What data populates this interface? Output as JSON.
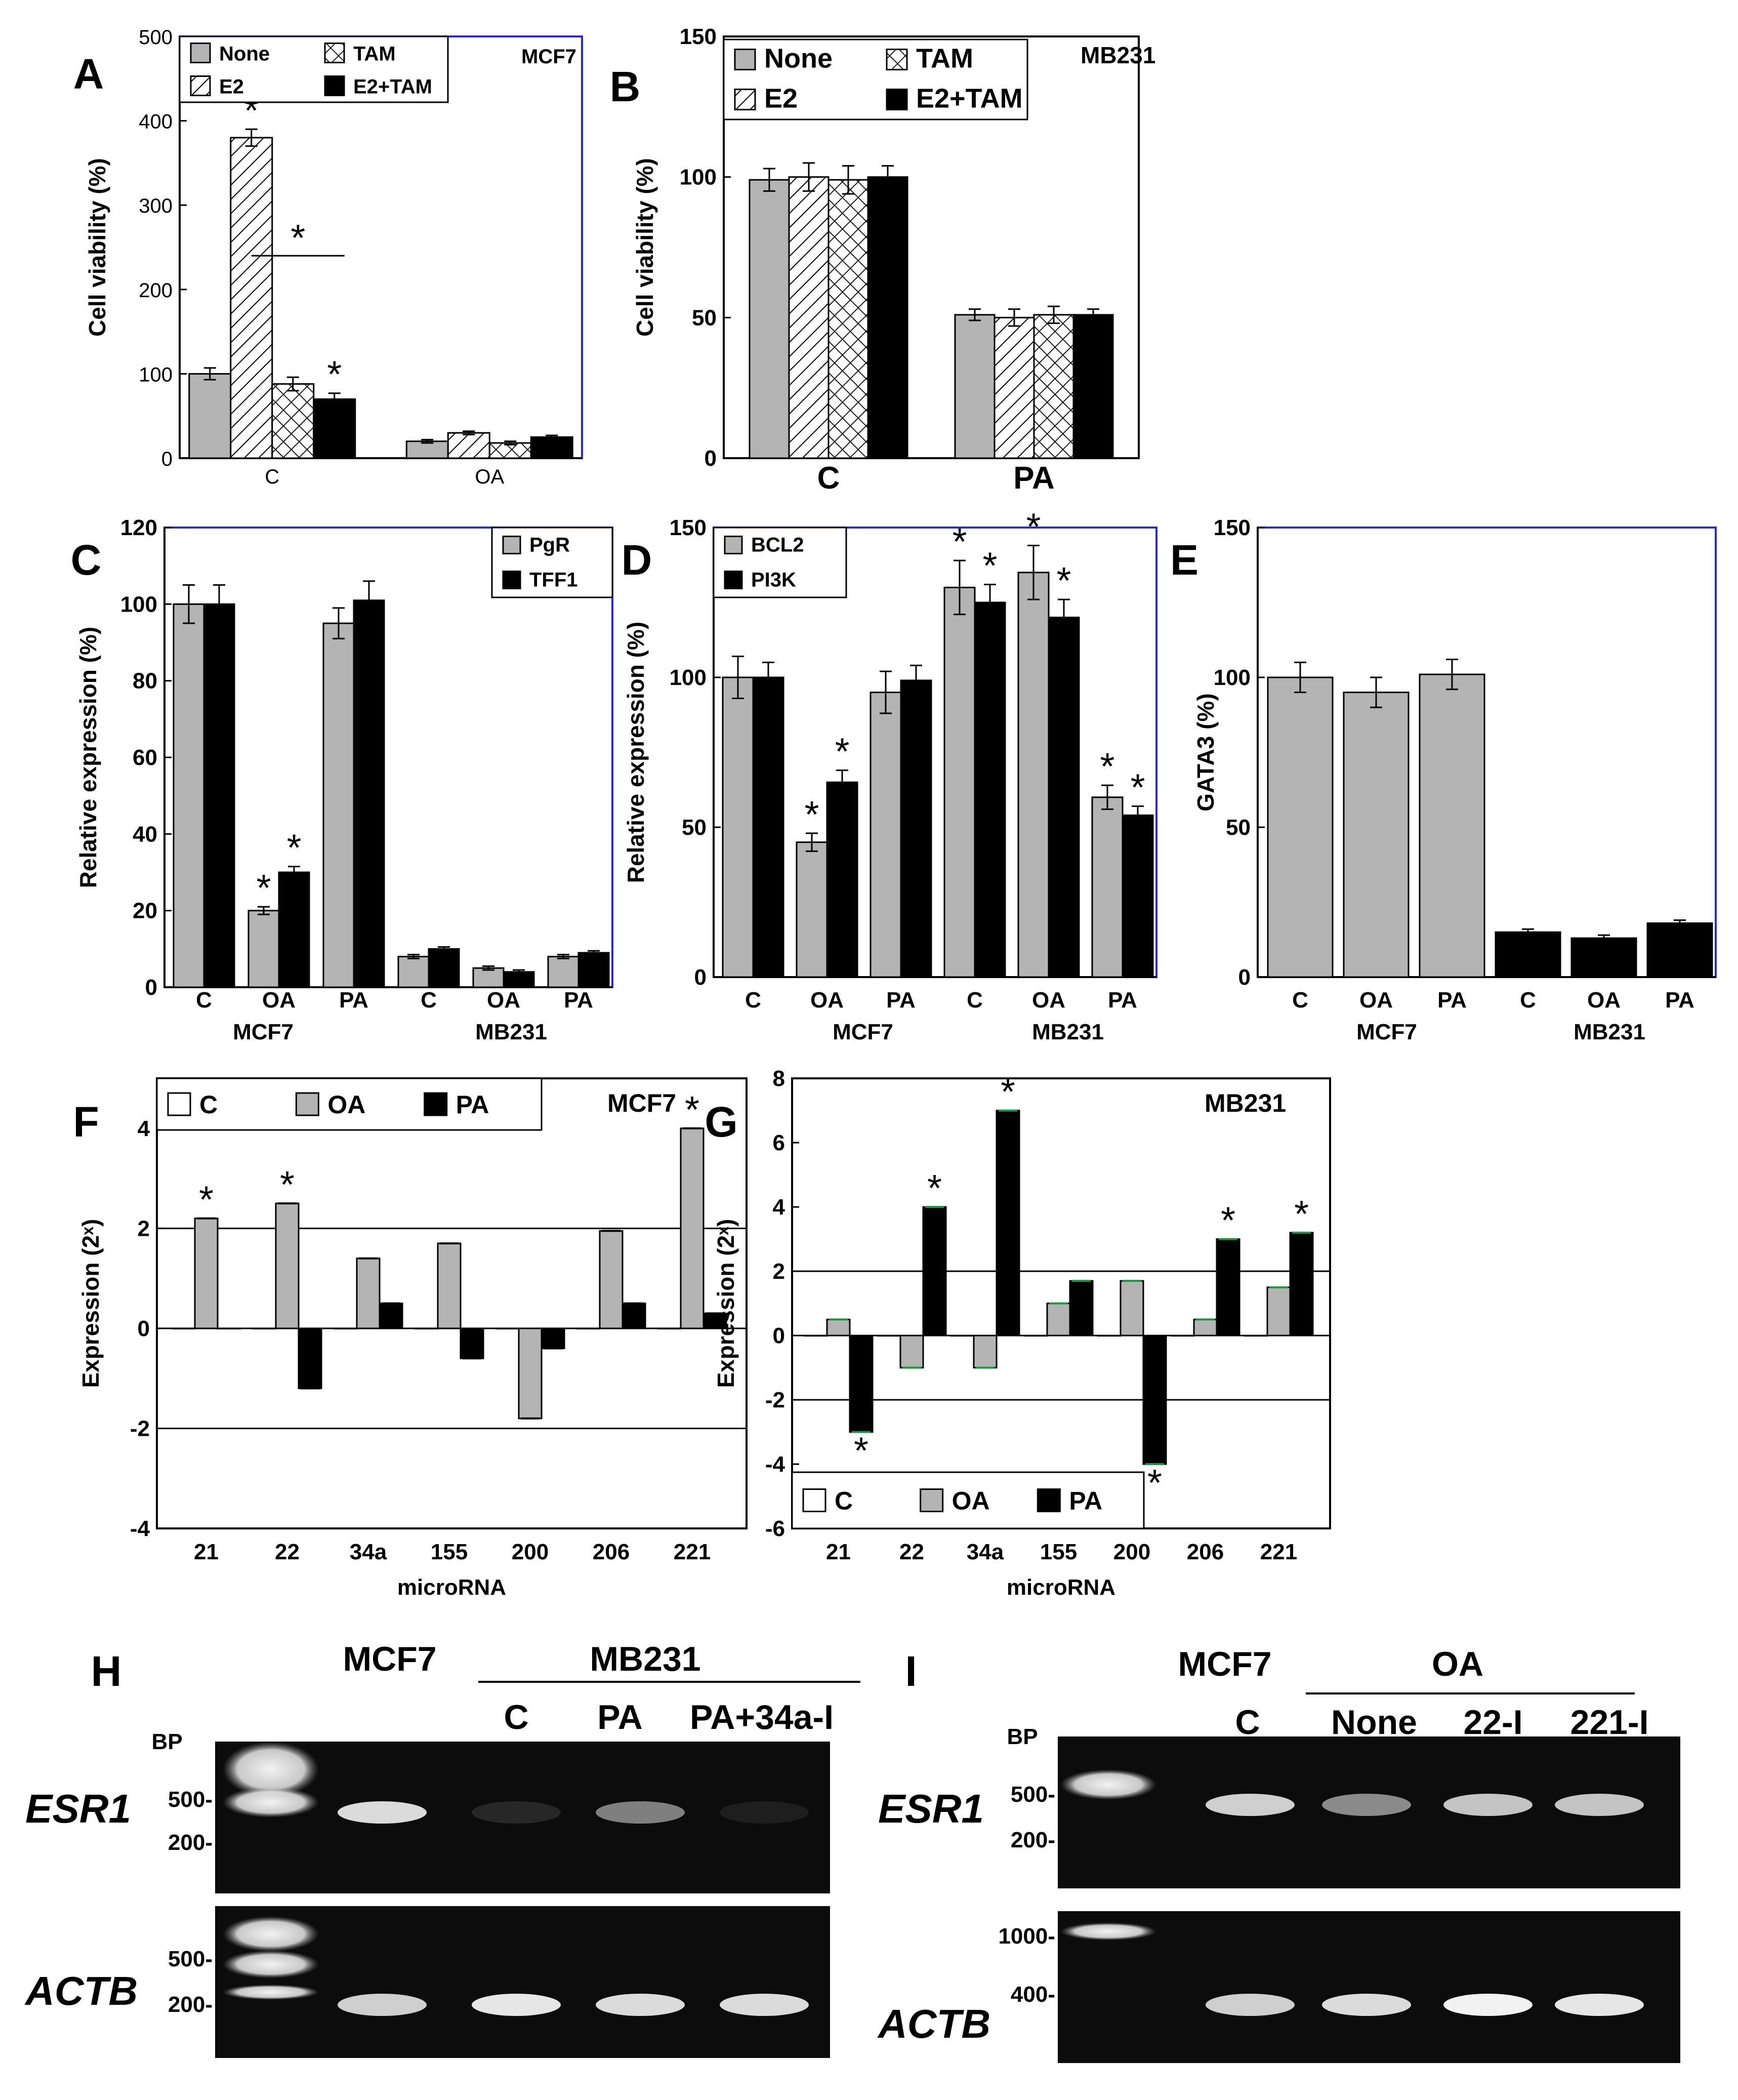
{
  "chart_data": [
    {
      "panel": "A",
      "type": "bar",
      "cell_line": "MCF7",
      "categories": [
        "C",
        "OA"
      ],
      "series": [
        {
          "name": "None",
          "values": [
            100,
            20
          ],
          "err": [
            7,
            2
          ]
        },
        {
          "name": "E2",
          "values": [
            380,
            30
          ],
          "err": [
            10,
            2
          ]
        },
        {
          "name": "TAM",
          "values": [
            88,
            18
          ],
          "err": [
            8,
            2
          ]
        },
        {
          "name": "E2+TAM",
          "values": [
            70,
            25
          ],
          "err": [
            7,
            2
          ]
        }
      ],
      "ylabel": "Cell viability (%)",
      "xlabel": "",
      "ylim": [
        0,
        500
      ],
      "yticks": [
        0,
        100,
        200,
        300,
        400,
        500
      ],
      "significance": [
        {
          "category": 0,
          "series": 1,
          "text": "*"
        },
        {
          "category": 0,
          "series": 3,
          "text": "*"
        }
      ],
      "bracket_star": "*",
      "legend_position": "top-left"
    },
    {
      "panel": "B",
      "type": "bar",
      "cell_line": "MB231",
      "categories": [
        "C",
        "PA"
      ],
      "series": [
        {
          "name": "None",
          "values": [
            99,
            51
          ],
          "err": [
            4,
            2
          ]
        },
        {
          "name": "E2",
          "values": [
            100,
            50
          ],
          "err": [
            5,
            3
          ]
        },
        {
          "name": "TAM",
          "values": [
            99,
            51
          ],
          "err": [
            5,
            3
          ]
        },
        {
          "name": "E2+TAM",
          "values": [
            100,
            51
          ],
          "err": [
            4,
            2
          ]
        }
      ],
      "ylabel": "Cell viability (%)",
      "xlabel": "",
      "ylim": [
        0,
        150
      ],
      "yticks": [
        0,
        50,
        100,
        150
      ],
      "legend_position": "top-left"
    },
    {
      "panel": "C",
      "type": "bar",
      "categories": [
        "C",
        "OA",
        "PA",
        "C",
        "OA",
        "PA"
      ],
      "groups": [
        "MCF7",
        "MB231"
      ],
      "series": [
        {
          "name": "PgR",
          "values": [
            100,
            20,
            95,
            8,
            5,
            8
          ],
          "err": [
            5,
            1,
            4,
            0.5,
            0.5,
            0.5
          ]
        },
        {
          "name": "TFF1",
          "values": [
            100,
            30,
            101,
            10,
            4,
            9
          ],
          "err": [
            5,
            1.5,
            5,
            0.5,
            0.5,
            0.5
          ]
        }
      ],
      "ylabel": "Relative expression (%)",
      "xlabel": "",
      "ylim": [
        0,
        120
      ],
      "yticks": [
        0,
        20,
        40,
        60,
        80,
        100,
        120
      ],
      "significance": [
        {
          "category": 1,
          "series": 0,
          "text": "*"
        },
        {
          "category": 1,
          "series": 1,
          "text": "*"
        }
      ],
      "legend_position": "top-right"
    },
    {
      "panel": "D",
      "type": "bar",
      "categories": [
        "C",
        "OA",
        "PA",
        "C",
        "OA",
        "PA"
      ],
      "groups": [
        "MCF7",
        "MB231"
      ],
      "series": [
        {
          "name": "BCL2",
          "values": [
            100,
            45,
            95,
            130,
            135,
            60
          ],
          "err": [
            7,
            3,
            7,
            9,
            9,
            4
          ]
        },
        {
          "name": "PI3K",
          "values": [
            100,
            65,
            99,
            125,
            120,
            54
          ],
          "err": [
            5,
            4,
            5,
            6,
            6,
            3
          ]
        }
      ],
      "ylabel": "Relative expression (%)",
      "xlabel": "",
      "ylim": [
        0,
        150
      ],
      "yticks": [
        0,
        50,
        100,
        150
      ],
      "significance": [
        {
          "category": 1,
          "series": 0,
          "text": "*"
        },
        {
          "category": 1,
          "series": 1,
          "text": "*"
        },
        {
          "category": 3,
          "series": 0,
          "text": "*"
        },
        {
          "category": 3,
          "series": 1,
          "text": "*"
        },
        {
          "category": 4,
          "series": 0,
          "text": "*"
        },
        {
          "category": 4,
          "series": 1,
          "text": "*"
        },
        {
          "category": 5,
          "series": 0,
          "text": "*"
        },
        {
          "category": 5,
          "series": 1,
          "text": "*"
        }
      ],
      "legend_position": "top-left"
    },
    {
      "panel": "E",
      "type": "bar",
      "categories": [
        "C",
        "OA",
        "PA",
        "C",
        "OA",
        "PA"
      ],
      "groups": [
        "MCF7",
        "MB231"
      ],
      "series": [
        {
          "name": "",
          "values": [
            100,
            95,
            101,
            15,
            13,
            18
          ],
          "err": [
            5,
            5,
            5,
            1,
            1,
            1
          ]
        }
      ],
      "ylabel": "GATA3 (%)",
      "xlabel": "",
      "ylim": [
        0,
        150
      ],
      "yticks": [
        0,
        50,
        100,
        150
      ]
    },
    {
      "panel": "F",
      "type": "bar",
      "cell_line": "MCF7",
      "categories": [
        "21",
        "22",
        "34a",
        "155",
        "200",
        "206",
        "221"
      ],
      "series": [
        {
          "name": "C",
          "values": [
            0,
            0,
            0,
            0,
            0,
            0,
            0
          ]
        },
        {
          "name": "OA",
          "values": [
            2.2,
            2.5,
            1.4,
            1.7,
            -1.8,
            1.95,
            4.0
          ]
        },
        {
          "name": "PA",
          "values": [
            0,
            -1.2,
            0.5,
            -0.6,
            -0.4,
            0.5,
            0.3
          ]
        }
      ],
      "ylabel": "Expression (2ˣ)",
      "xlabel": "microRNA",
      "ylim": [
        -4,
        5
      ],
      "yticks": [
        -4,
        -2,
        0,
        2,
        4
      ],
      "reference_lines": [
        2,
        -2
      ],
      "significance": [
        {
          "category": 0,
          "series": 1,
          "text": "*"
        },
        {
          "category": 1,
          "series": 1,
          "text": "*"
        },
        {
          "category": 6,
          "series": 1,
          "text": "*"
        }
      ],
      "legend_position": "top"
    },
    {
      "panel": "G",
      "type": "bar",
      "cell_line": "MB231",
      "categories": [
        "21",
        "22",
        "34a",
        "155",
        "200",
        "206",
        "221"
      ],
      "series": [
        {
          "name": "C",
          "values": [
            0,
            0,
            0,
            0,
            0,
            0,
            0
          ]
        },
        {
          "name": "OA",
          "values": [
            0.5,
            -1.0,
            -1.0,
            1.0,
            1.7,
            0.5,
            1.5
          ]
        },
        {
          "name": "PA",
          "values": [
            -3.0,
            4.0,
            7.0,
            1.7,
            -4.0,
            3.0,
            3.2
          ]
        }
      ],
      "ylabel": "Expression (2ˣ)",
      "xlabel": "microRNA",
      "ylim": [
        -6,
        8
      ],
      "yticks": [
        -6,
        -4,
        -2,
        0,
        2,
        4,
        6,
        8
      ],
      "reference_lines": [
        2,
        -2
      ],
      "significance": [
        {
          "category": 0,
          "series": 2,
          "text": "*"
        },
        {
          "category": 1,
          "series": 2,
          "text": "*"
        },
        {
          "category": 2,
          "series": 2,
          "text": "*"
        },
        {
          "category": 4,
          "series": 2,
          "text": "*"
        },
        {
          "category": 5,
          "series": 2,
          "text": "*"
        },
        {
          "category": 6,
          "series": 2,
          "text": "*"
        }
      ],
      "legend_position": "bottom-left"
    }
  ],
  "gels": [
    {
      "panel": "H",
      "header_single": "MCF7",
      "header_group": "MB231",
      "lanes": [
        "C",
        "PA",
        "PA+34a-I"
      ],
      "bp_title": "BP",
      "rows": [
        {
          "gene": "ESR1",
          "markers": [
            "500-",
            "200-"
          ],
          "band_intensity": [
            0.9,
            0.12,
            0.5,
            0.08
          ]
        },
        {
          "gene": "ACTB",
          "markers": [
            "500-",
            "200-"
          ],
          "band_intensity": [
            0.85,
            0.95,
            0.9,
            0.9
          ]
        }
      ]
    },
    {
      "panel": "I",
      "header_single": "MCF7",
      "header_group": "OA",
      "lanes": [
        "C",
        "None",
        "22-I",
        "221-I"
      ],
      "bp_title": "BP",
      "rows": [
        {
          "gene": "ESR1",
          "markers": [
            "500-",
            "200-"
          ],
          "band_intensity": [
            0.85,
            0.55,
            0.8,
            0.8
          ]
        },
        {
          "gene": "ACTB",
          "markers": [
            "1000-",
            "400-"
          ],
          "band_intensity": [
            0.85,
            0.9,
            1.0,
            0.95
          ]
        }
      ]
    }
  ],
  "colors": {
    "grey_bar": "#b4b4b4",
    "black_bar": "#000000",
    "frame_blue": "#2a2ad8",
    "significance_cap_green": "#1a9a3a",
    "gel_band": "#f2f2f2",
    "gel_background": "#0c0c0c"
  }
}
